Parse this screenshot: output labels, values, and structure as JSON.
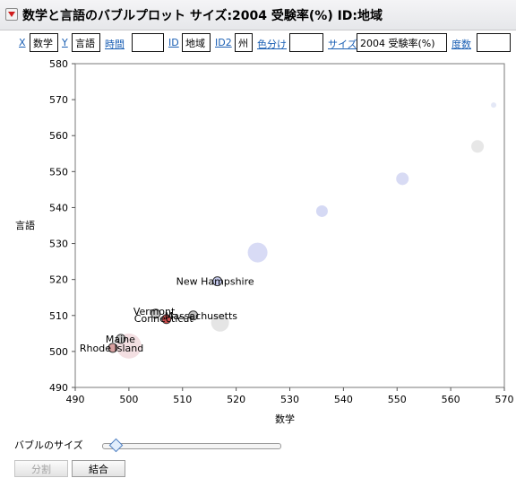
{
  "window": {
    "title": "数学と言語のバブルプロット サイズ:2004 受験率(%)  ID:地域"
  },
  "roles": [
    {
      "label": "X",
      "value": "数学"
    },
    {
      "label": "Y",
      "value": "言語"
    },
    {
      "label": "時間",
      "value": ""
    },
    {
      "label": "ID",
      "value": "地域"
    },
    {
      "label": "ID2",
      "value": "州"
    },
    {
      "label": "色分け",
      "value": ""
    },
    {
      "label": "サイズ",
      "value": "2004 受験率(%)"
    },
    {
      "label": "度数",
      "value": ""
    }
  ],
  "controls": {
    "bubble_size_label": "バブルのサイズ",
    "bubble_size_fraction": 0.08,
    "split_label": "分割",
    "combine_label": "結合"
  },
  "chart_data": {
    "type": "scatter",
    "xlabel": "数学",
    "ylabel": "言語",
    "xlim": [
      490,
      570
    ],
    "ylim": [
      490,
      580
    ],
    "x_ticks": [
      "490",
      "500",
      "510",
      "520",
      "530",
      "540",
      "550",
      "560",
      "570"
    ],
    "y_ticks": [
      "490",
      "500",
      "510",
      "520",
      "530",
      "540",
      "550",
      "560",
      "570",
      "580"
    ],
    "grid": false,
    "bubbles": [
      {
        "x": 568,
        "y": 568.5,
        "r": 3,
        "color": "#e3e7f5"
      },
      {
        "x": 565,
        "y": 557,
        "r": 7,
        "color": "#e6e6e6"
      },
      {
        "x": 551,
        "y": 548,
        "r": 7,
        "color": "#d6d9f3"
      },
      {
        "x": 536,
        "y": 539,
        "r": 6.5,
        "color": "#d3d7f3"
      },
      {
        "x": 524,
        "y": 527.5,
        "r": 11,
        "color": "#d6d9f4"
      },
      {
        "x": 517,
        "y": 508,
        "r": 10,
        "color": "#e4e4e4"
      },
      {
        "x": 500,
        "y": 501.5,
        "r": 14,
        "color": "#f2dde0"
      },
      {
        "x": 516.5,
        "y": 519.5,
        "r": 5,
        "color": "#c4c9ec",
        "stroke": true,
        "label": "New Hampshire",
        "lx": -46,
        "ly": 4
      },
      {
        "x": 505,
        "y": 510.5,
        "r": 5,
        "color": "#c8c8c8",
        "stroke": true,
        "label": "Vermont",
        "lx": -25,
        "ly": 1
      },
      {
        "x": 512,
        "y": 510,
        "r": 5,
        "color": "#c6c6c6",
        "stroke": true,
        "label": "Massachusetts",
        "lx": -32,
        "ly": 4
      },
      {
        "x": 507,
        "y": 509,
        "r": 5,
        "color": "#cf5050",
        "stroke": true,
        "label": "Connecticut",
        "lx": -36,
        "ly": 3
      },
      {
        "x": 498.5,
        "y": 503.5,
        "r": 5,
        "color": "#c9c9c9",
        "stroke": true,
        "label": "Maine",
        "lx": -17,
        "ly": 4
      },
      {
        "x": 497,
        "y": 501,
        "r": 5,
        "color": "#d7a0a0",
        "stroke": true,
        "label": "Rhode Island",
        "lx": -37,
        "ly": 4
      }
    ]
  }
}
